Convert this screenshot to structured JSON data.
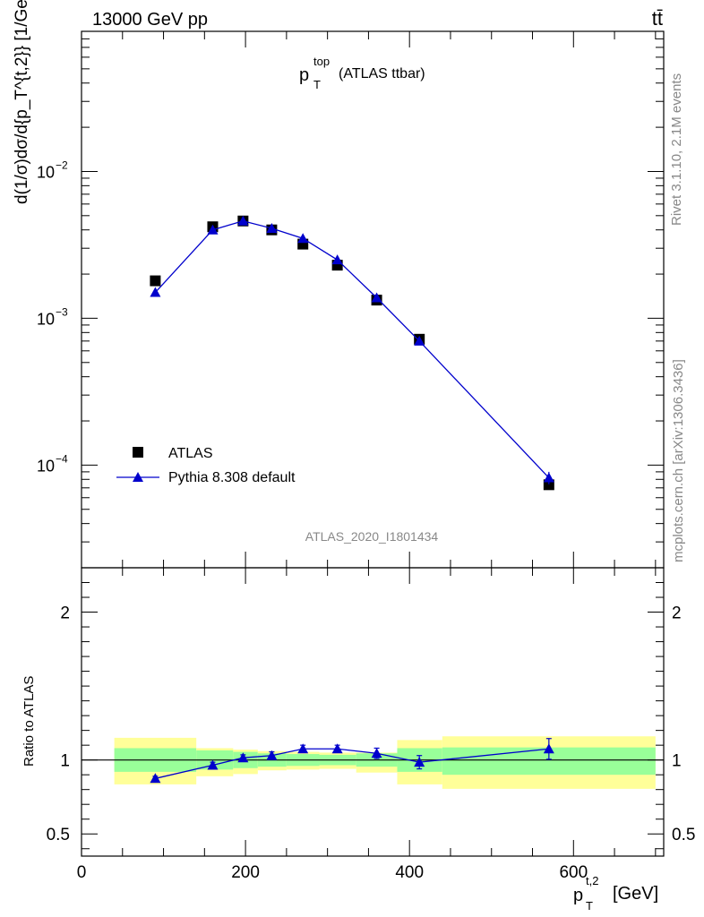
{
  "header": {
    "energy_label": "13000 GeV pp",
    "process_label": "tt̄"
  },
  "plot_title": {
    "main": "p",
    "sup": "top",
    "sub": "T",
    "suffix": "(ATLAS ttbar)"
  },
  "side_labels": {
    "rivet": "Rivet 3.1.10,  2.1M events",
    "mcplots": "mcplots.cern.ch [arXiv:1306.3436]"
  },
  "analysis_id": "ATLAS_2020_I1801434",
  "y_axis_label": "d(1/σ)dσ/d{p_T^{t,2}} [1/GeV]",
  "ratio_axis_label": "Ratio to ATLAS",
  "x_axis_label": {
    "main": "p",
    "sup": "t,2",
    "sub": "T",
    "unit": "[GeV]"
  },
  "legend": {
    "data_label": "ATLAS",
    "mc_label": "Pythia 8.308 default"
  },
  "colors": {
    "data": "#000000",
    "mc": "#0000cc",
    "band_inner": "#99ff99",
    "band_outer": "#ffff99"
  },
  "chart_data": [
    {
      "type": "scatter",
      "panel": "main",
      "x_scale": "linear",
      "y_scale": "log",
      "xlim": [
        0,
        710
      ],
      "ylim": [
        2e-05,
        0.09
      ],
      "y_ticks": [
        {
          "value": 0.0001,
          "base": "10",
          "exp": "−4"
        },
        {
          "value": 0.001,
          "base": "10",
          "exp": "−3"
        },
        {
          "value": 0.01,
          "base": "10",
          "exp": "−2"
        }
      ],
      "series": [
        {
          "name": "ATLAS",
          "x": [
            90,
            160,
            197,
            232,
            270,
            312,
            360,
            412,
            570
          ],
          "y": [
            0.0018,
            0.0042,
            0.0046,
            0.004,
            0.0032,
            0.0023,
            0.00133,
            0.00072,
            7.35e-05
          ]
        },
        {
          "name": "Pythia 8.308 default",
          "x": [
            90,
            160,
            197,
            232,
            270,
            312,
            360,
            412,
            570
          ],
          "y": [
            0.0015,
            0.004,
            0.0046,
            0.0041,
            0.0035,
            0.0025,
            0.00138,
            0.0007,
            8.2e-05
          ],
          "yerr": [
            3e-05,
            6e-05,
            6e-05,
            6e-05,
            6e-05,
            5e-05,
            4e-05,
            3e-05,
            8e-06
          ]
        }
      ]
    },
    {
      "type": "scatter",
      "panel": "ratio",
      "x_scale": "linear",
      "y_scale": "linear",
      "xlim": [
        0,
        710
      ],
      "ylim": [
        0.35,
        2.3
      ],
      "y_ticks": [
        0.5,
        1,
        2
      ],
      "y_tick_labels": [
        "0.5",
        "1",
        "2"
      ],
      "x_ticks": [
        0,
        200,
        400,
        600
      ],
      "x_tick_labels": [
        "0",
        "200",
        "400",
        "600"
      ],
      "bands": [
        {
          "x_range": [
            40,
            140
          ],
          "inner": [
            0.92,
            1.08
          ],
          "outer": [
            0.835,
            1.15
          ]
        },
        {
          "x_range": [
            140,
            185
          ],
          "inner": [
            0.935,
            1.065
          ],
          "outer": [
            0.89,
            1.08
          ]
        },
        {
          "x_range": [
            185,
            215
          ],
          "inner": [
            0.945,
            1.055
          ],
          "outer": [
            0.905,
            1.07
          ]
        },
        {
          "x_range": [
            215,
            250
          ],
          "inner": [
            0.955,
            1.045
          ],
          "outer": [
            0.93,
            1.06
          ]
        },
        {
          "x_range": [
            250,
            290
          ],
          "inner": [
            0.96,
            1.04
          ],
          "outer": [
            0.935,
            1.055
          ]
        },
        {
          "x_range": [
            290,
            335
          ],
          "inner": [
            0.965,
            1.035
          ],
          "outer": [
            0.94,
            1.05
          ]
        },
        {
          "x_range": [
            335,
            385
          ],
          "inner": [
            0.955,
            1.045
          ],
          "outer": [
            0.915,
            1.05
          ]
        },
        {
          "x_range": [
            385,
            440
          ],
          "inner": [
            0.92,
            1.08
          ],
          "outer": [
            0.835,
            1.135
          ]
        },
        {
          "x_range": [
            440,
            700
          ],
          "inner": [
            0.9,
            1.085
          ],
          "outer": [
            0.805,
            1.16
          ]
        }
      ],
      "series": [
        {
          "name": "Pythia 8.308 default",
          "x": [
            90,
            160,
            197,
            232,
            270,
            312,
            360,
            412,
            570
          ],
          "y": [
            0.875,
            0.965,
            1.015,
            1.03,
            1.075,
            1.075,
            1.045,
            0.985,
            1.075
          ],
          "yerr": [
            0.015,
            0.02,
            0.02,
            0.025,
            0.025,
            0.025,
            0.035,
            0.045,
            0.07
          ]
        }
      ]
    }
  ]
}
